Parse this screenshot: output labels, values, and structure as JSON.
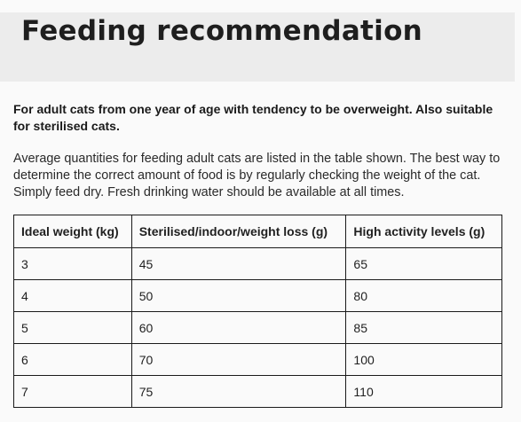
{
  "header": {
    "title": "Feeding recommendation"
  },
  "intro": {
    "lead": "For adult cats from one year of age with tendency to be overweight. Also suitable for sterilised cats.",
    "description": "Average quantities for feeding adult cats are listed in the table shown. The best way to determine the correct amount of food is by regularly checking the weight of the cat. Simply feed dry. Fresh drinking water should be available at all times."
  },
  "table": {
    "headers": [
      "Ideal weight (kg)",
      "Sterilised/indoor/weight loss (g)",
      "High activity levels (g)"
    ],
    "rows": [
      [
        "3",
        "45",
        "65"
      ],
      [
        "4",
        "50",
        "80"
      ],
      [
        "5",
        "60",
        "85"
      ],
      [
        "6",
        "70",
        "100"
      ],
      [
        "7",
        "75",
        "110"
      ]
    ]
  }
}
